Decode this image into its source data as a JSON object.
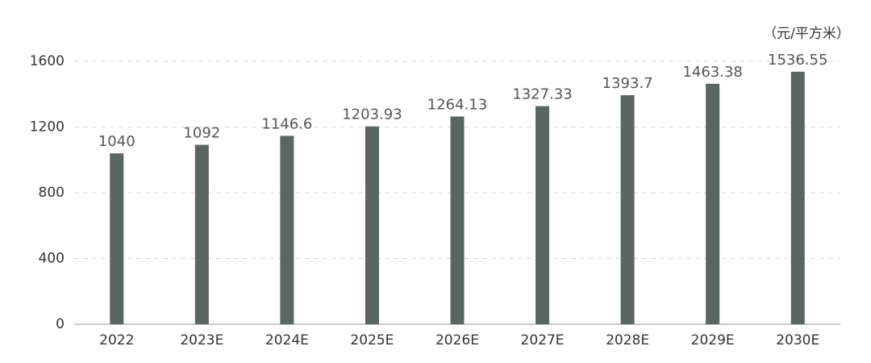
{
  "chart_data": {
    "type": "bar",
    "y_axis_label": "（元/平方米）",
    "categories": [
      "2022",
      "2023E",
      "2024E",
      "2025E",
      "2026E",
      "2027E",
      "2028E",
      "2029E",
      "2030E"
    ],
    "values": [
      1040,
      1092,
      1146.6,
      1203.93,
      1264.13,
      1327.33,
      1393.7,
      1463.38,
      1536.55
    ],
    "color": "#5a6660",
    "ylim": [
      0,
      1600
    ],
    "yticks": [
      0,
      400,
      800,
      1200,
      1600
    ],
    "grid": true
  }
}
